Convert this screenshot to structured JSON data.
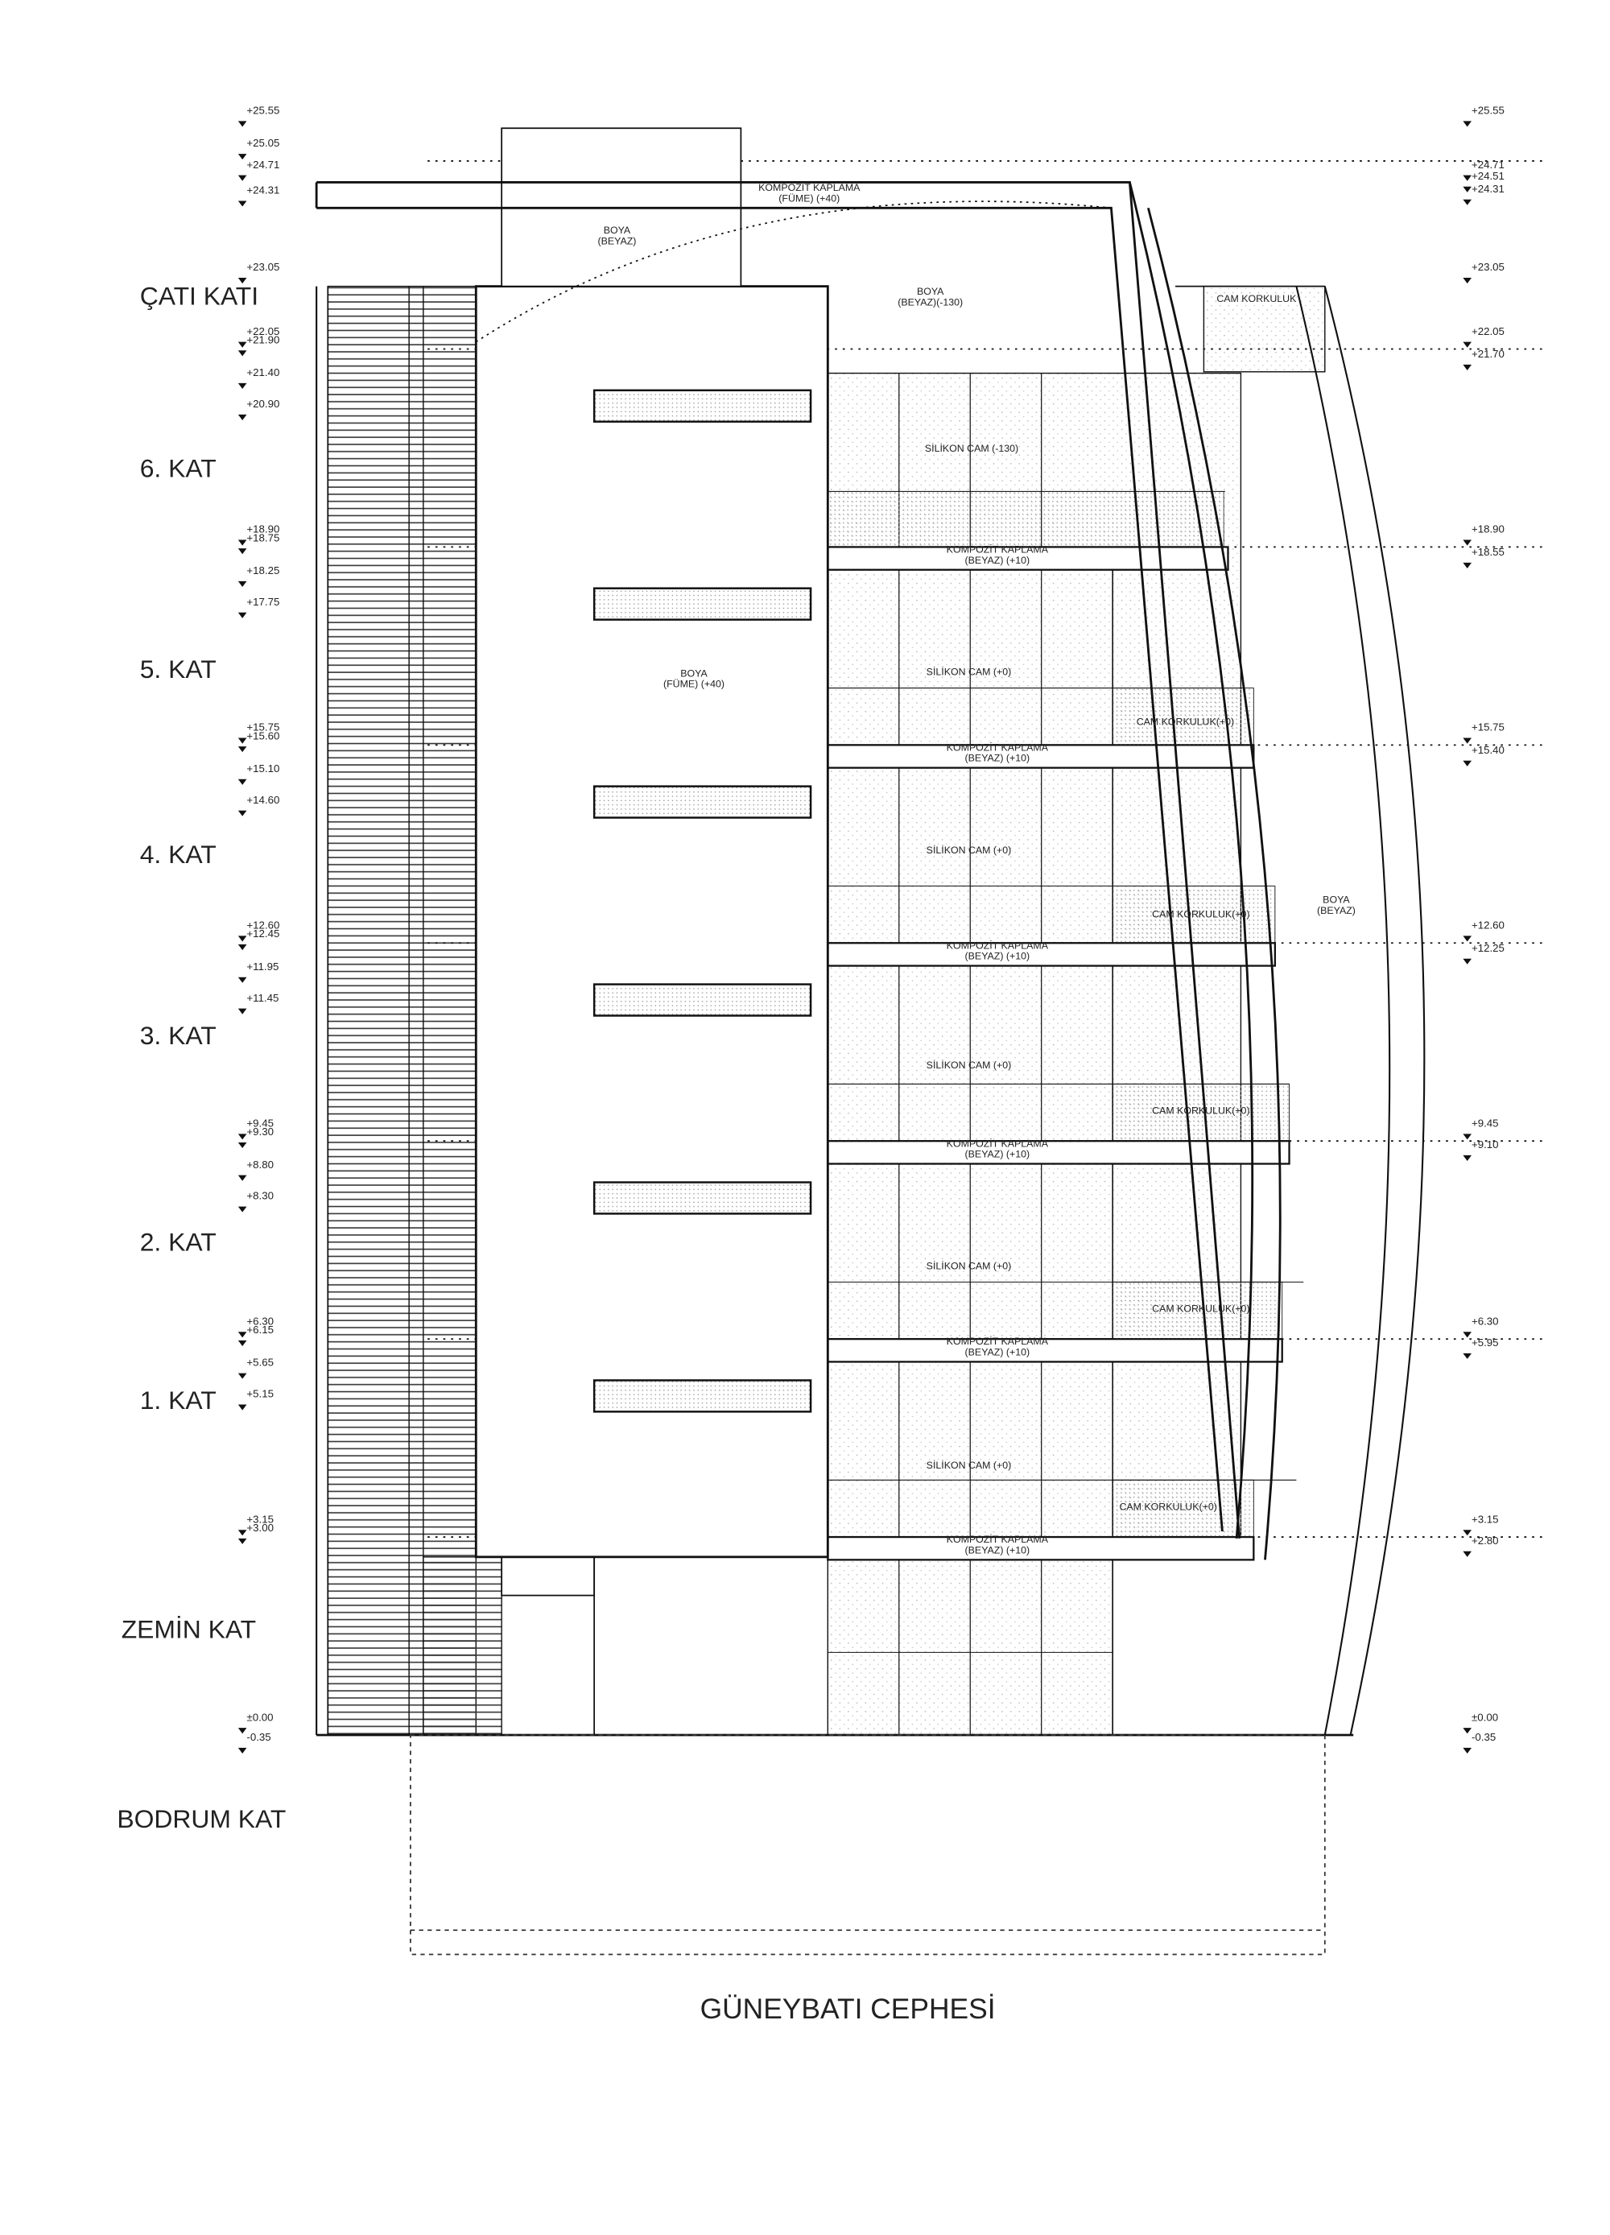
{
  "title": "GÜNEYBATI CEPHESİ",
  "floors": [
    "ÇATI KATI",
    "6. KAT",
    "5. KAT",
    "4. KAT",
    "3. KAT",
    "2. KAT",
    "1. KAT",
    "ZEMİN KAT",
    "BODRUM KAT"
  ],
  "levels_left": [
    "+25.55",
    "+25.05",
    "+24.71",
    "+24.31",
    "+23.05",
    "+22.05",
    "+21.90",
    "+21.40",
    "+20.90",
    "+18.90",
    "+18.75",
    "+18.25",
    "+17.75",
    "+15.75",
    "+15.60",
    "+15.10",
    "+14.60",
    "+12.60",
    "+12.45",
    "+11.95",
    "+11.45",
    "+9.45",
    "+9.30",
    "+8.80",
    "+8.30",
    "+6.30",
    "+6.15",
    "+5.65",
    "+5.15",
    "+3.15",
    "+3.00",
    "±0.00",
    "-0.35"
  ],
  "levels_right": [
    "+25.55",
    "+24.71",
    "+24.51",
    "+24.31",
    "+23.05",
    "+22.05",
    "+21.70",
    "+18.90",
    "+18.55",
    "+15.75",
    "+15.40",
    "+12.60",
    "+12.25",
    "+9.45",
    "+9.10",
    "+6.30",
    "+5.95",
    "+3.15",
    "+2.80",
    "±0.00",
    "-0.35"
  ],
  "notes": {
    "roof_cladding": [
      "KOMPOZİT KAPLAMA",
      "(FÜME) (+40)"
    ],
    "penthouse_paint": [
      "BOYA",
      "(BEYAZ)"
    ],
    "roof_paint": [
      "BOYA",
      "(BEYAZ)(-130)"
    ],
    "roof_railing": "CAM KORKULUK",
    "top_glass": "SİLİKON CAM (-130)",
    "block_paint": [
      "BOYA",
      "(FÜME) (+40)"
    ],
    "shell_paint": [
      "BOYA",
      "(BEYAZ)"
    ],
    "floor_glass": "SİLİKON CAM (+0)",
    "floor_railing": "CAM KORKULUK(+0)",
    "slab_cladding": [
      "KOMPOZİT KAPLAMA",
      "(BEYAZ) (+10)"
    ]
  },
  "colors": {
    "line": "#111111",
    "stipple": "#bdbdbd",
    "text": "#222222"
  }
}
